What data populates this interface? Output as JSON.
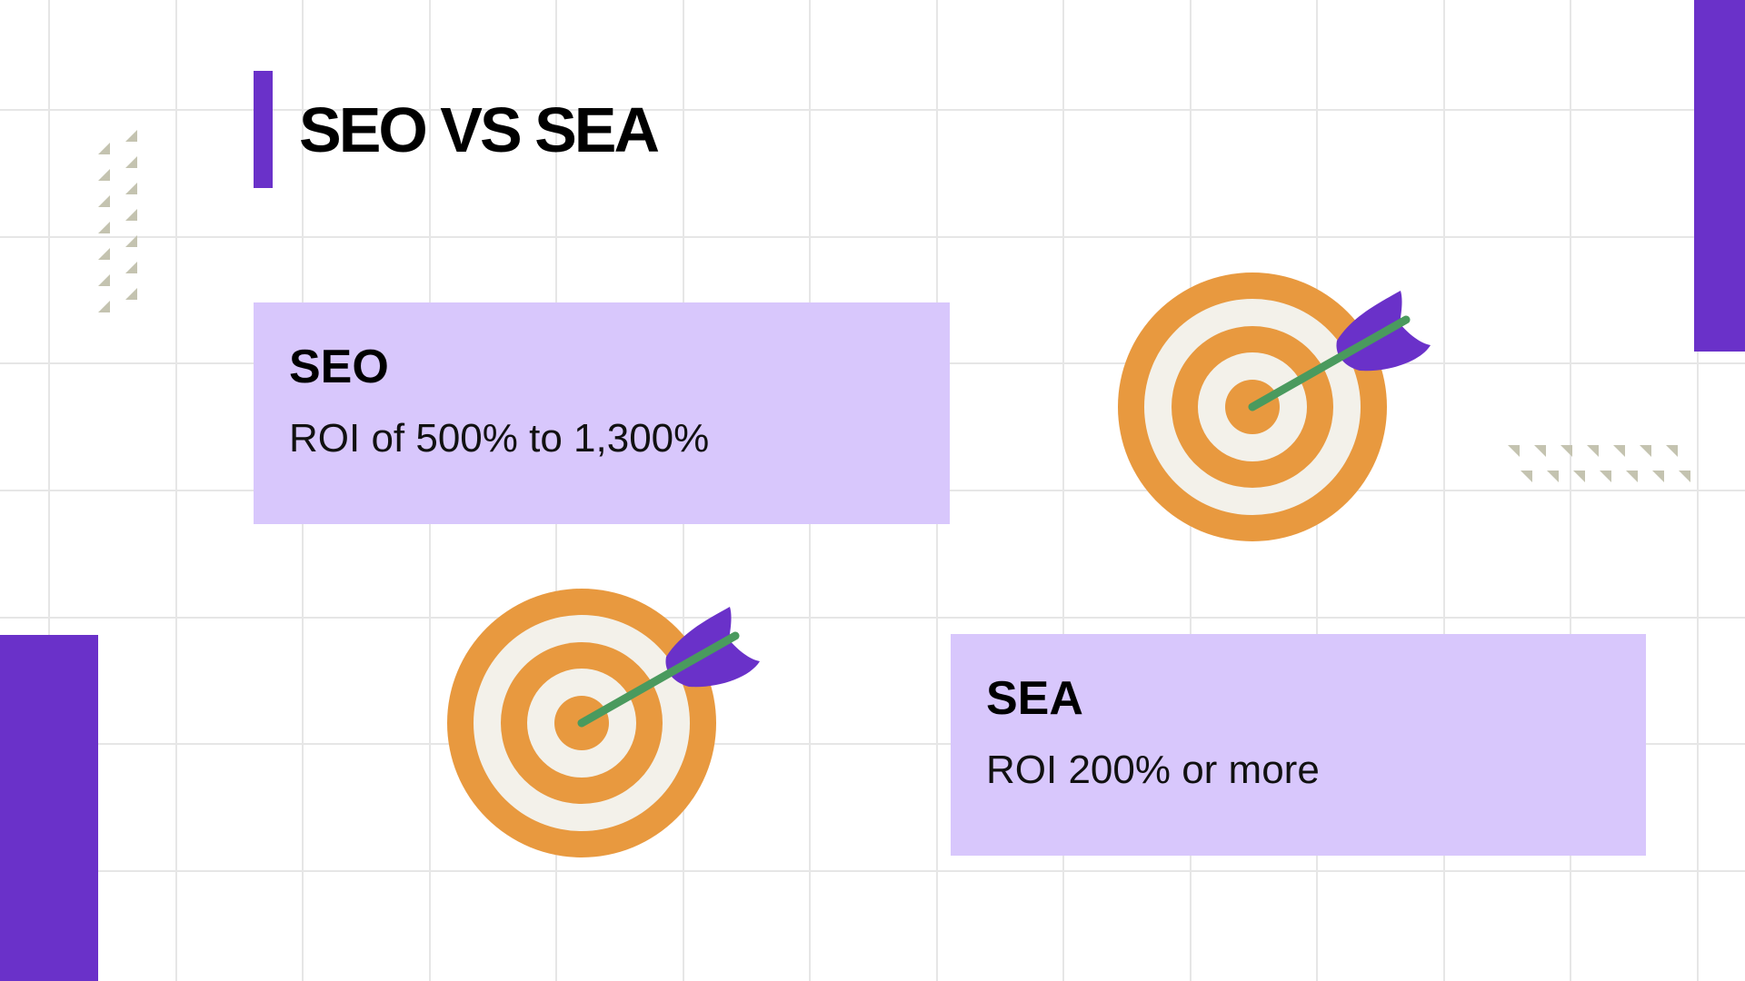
{
  "title": "SEO VS SEA",
  "cards": [
    {
      "heading": "SEO",
      "text": "ROI of 500% to 1,300%"
    },
    {
      "heading": "SEA",
      "text": "ROI 200% or more"
    }
  ]
}
